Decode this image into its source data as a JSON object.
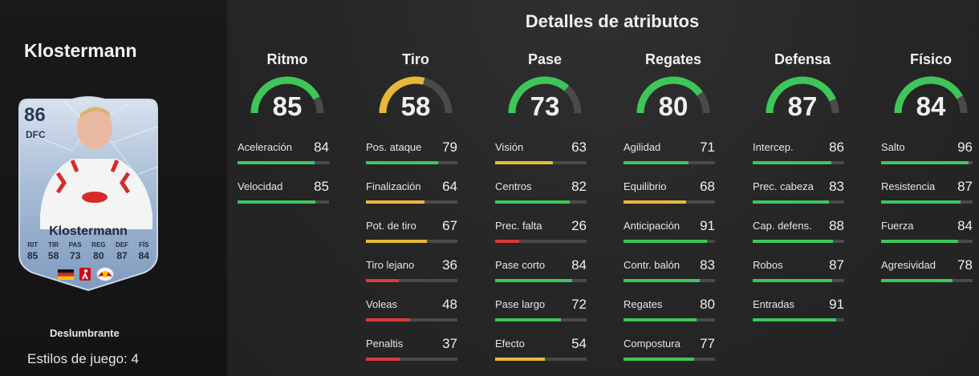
{
  "player": {
    "name": "Klostermann",
    "card": {
      "rating": "86",
      "position": "DFC",
      "name": "Klostermann",
      "stats": [
        {
          "label": "RIT",
          "value": "85"
        },
        {
          "label": "TIR",
          "value": "58"
        },
        {
          "label": "PAS",
          "value": "73"
        },
        {
          "label": "REG",
          "value": "80"
        },
        {
          "label": "DEF",
          "value": "87"
        },
        {
          "label": "FÍS",
          "value": "84"
        }
      ],
      "badge_icons": [
        "germany-flag-icon",
        "bundesliga-logo-icon",
        "rb-leipzig-crest-icon"
      ]
    },
    "playstyle": "Deslumbrante",
    "playstyles_count": "Estilos de juego: 4"
  },
  "colors": {
    "green": "#3ec65a",
    "yellow": "#e8b83a",
    "red": "#d93a3a",
    "track": "#4a4a4a"
  },
  "section_title": "Detalles de atributos",
  "categories": [
    {
      "title": "Ritmo",
      "value": 85,
      "color": "green",
      "attributes": [
        {
          "label": "Aceleración",
          "value": 84,
          "color": "green"
        },
        {
          "label": "Velocidad",
          "value": 85,
          "color": "green"
        }
      ]
    },
    {
      "title": "Tiro",
      "value": 58,
      "color": "yellow",
      "attributes": [
        {
          "label": "Pos. ataque",
          "value": 79,
          "color": "green"
        },
        {
          "label": "Finalización",
          "value": 64,
          "color": "yellow"
        },
        {
          "label": "Pot. de tiro",
          "value": 67,
          "color": "yellow"
        },
        {
          "label": "Tiro lejano",
          "value": 36,
          "color": "red"
        },
        {
          "label": "Voleas",
          "value": 48,
          "color": "red"
        },
        {
          "label": "Penaltis",
          "value": 37,
          "color": "red"
        }
      ]
    },
    {
      "title": "Pase",
      "value": 73,
      "color": "green",
      "attributes": [
        {
          "label": "Visión",
          "value": 63,
          "color": "yellow"
        },
        {
          "label": "Centros",
          "value": 82,
          "color": "green"
        },
        {
          "label": "Prec. falta",
          "value": 26,
          "color": "red"
        },
        {
          "label": "Pase corto",
          "value": 84,
          "color": "green"
        },
        {
          "label": "Pase largo",
          "value": 72,
          "color": "green"
        },
        {
          "label": "Efecto",
          "value": 54,
          "color": "yellow"
        }
      ]
    },
    {
      "title": "Regates",
      "value": 80,
      "color": "green",
      "attributes": [
        {
          "label": "Agilidad",
          "value": 71,
          "color": "green"
        },
        {
          "label": "Equilibrio",
          "value": 68,
          "color": "yellow"
        },
        {
          "label": "Anticipación",
          "value": 91,
          "color": "green"
        },
        {
          "label": "Contr. balón",
          "value": 83,
          "color": "green"
        },
        {
          "label": "Regates",
          "value": 80,
          "color": "green"
        },
        {
          "label": "Compostura",
          "value": 77,
          "color": "green"
        }
      ]
    },
    {
      "title": "Defensa",
      "value": 87,
      "color": "green",
      "attributes": [
        {
          "label": "Intercep.",
          "value": 86,
          "color": "green"
        },
        {
          "label": "Prec. cabeza",
          "value": 83,
          "color": "green"
        },
        {
          "label": "Cap. defens.",
          "value": 88,
          "color": "green"
        },
        {
          "label": "Robos",
          "value": 87,
          "color": "green"
        },
        {
          "label": "Entradas",
          "value": 91,
          "color": "green"
        }
      ]
    },
    {
      "title": "Físico",
      "value": 84,
      "color": "green",
      "attributes": [
        {
          "label": "Salto",
          "value": 96,
          "color": "green"
        },
        {
          "label": "Resistencia",
          "value": 87,
          "color": "green"
        },
        {
          "label": "Fuerza",
          "value": 84,
          "color": "green"
        },
        {
          "label": "Agresividad",
          "value": 78,
          "color": "green"
        }
      ]
    }
  ]
}
